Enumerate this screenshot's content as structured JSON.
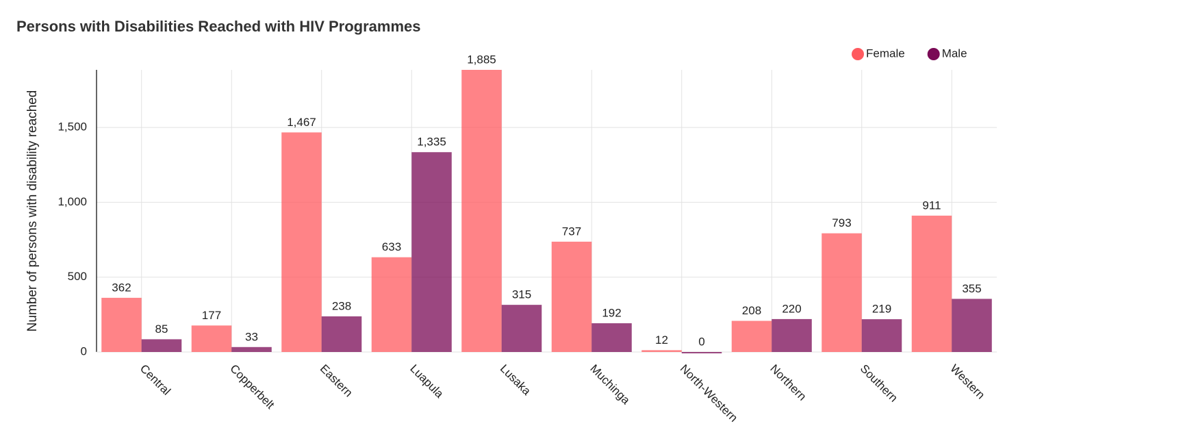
{
  "chart_data": {
    "type": "bar",
    "title": "Persons with Disabilities Reached with HIV Programmes",
    "y_label": "Number of persons with disability reached",
    "categories": [
      "Central",
      "Copperbelt",
      "Eastern",
      "Luapula",
      "Lusaka",
      "Muchinga",
      "North-Western",
      "Northern",
      "Southern",
      "Western"
    ],
    "series": [
      {
        "name": "Female",
        "color": "#ff5a5f",
        "values": [
          362,
          177,
          1467,
          633,
          1885,
          737,
          12,
          208,
          793,
          911
        ],
        "value_labels": [
          "362",
          "177",
          "1,467",
          "633",
          "1,885",
          "737",
          "12",
          "208",
          "793",
          "911"
        ]
      },
      {
        "name": "Male",
        "color": "#7a0a55",
        "values": [
          85,
          33,
          238,
          1335,
          315,
          192,
          0,
          220,
          219,
          355
        ],
        "value_labels": [
          "85",
          "33",
          "238",
          "1,335",
          "315",
          "192",
          "0",
          "220",
          "219",
          "355"
        ]
      }
    ],
    "ylim": [
      0,
      1885
    ],
    "yticks": [
      0,
      500,
      {
        "value": 1000,
        "label": "1,000"
      },
      {
        "value": 1500,
        "label": "1,500"
      }
    ],
    "grid": true,
    "legend": "top-right"
  }
}
